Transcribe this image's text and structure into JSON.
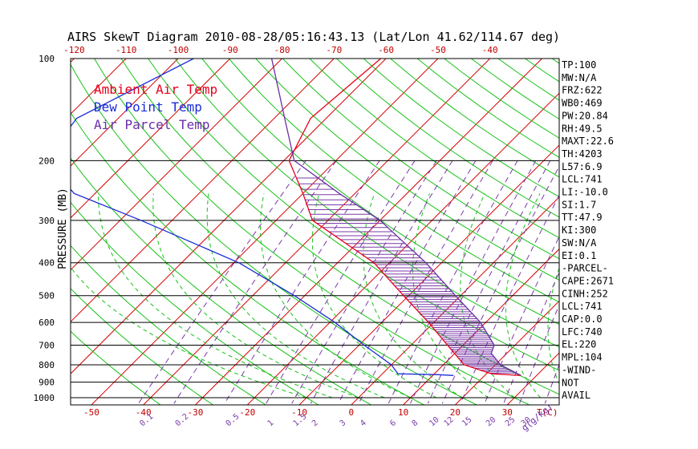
{
  "chart_data": {
    "type": "line",
    "title": "AIRS SkewT Diagram 2010-08-28/05:16:43.13 (Lat/Lon 41.62/114.67 deg)",
    "ylabel": "PRESSURE (MB)",
    "xlabel_bottom": "T(C)",
    "xlabel_mixing": "g(g/kg)",
    "pressure_ticks": [
      100,
      200,
      300,
      400,
      500,
      600,
      700,
      800,
      900,
      1000
    ],
    "pressure_ticks_text": [
      "100",
      "200",
      "300",
      "400",
      "500",
      "600",
      "700",
      "800",
      "900",
      "1000"
    ],
    "pressure_range": [
      100,
      1050
    ],
    "temp_range_at_bottom": [
      -54,
      40
    ],
    "top_temp_ticks": [
      -120,
      -110,
      -100,
      -90,
      -80,
      -70,
      -60,
      -50,
      -40
    ],
    "top_temp_ticks_text": [
      "-120",
      "-110",
      "-100",
      "-90",
      "-80",
      "-70",
      "-60",
      "-50",
      "-40"
    ],
    "bottom_temp_ticks": [
      -50,
      -40,
      -30,
      -20,
      -10,
      0,
      10,
      20,
      30
    ],
    "bottom_temp_ticks_text": [
      "-50",
      "-40",
      "-30",
      "-20",
      "-10",
      "0",
      "10",
      "20",
      "30"
    ],
    "mixing_ratio_labels": [
      "0.1",
      "0.2",
      "0.5",
      "1",
      "1.5",
      "2",
      "3",
      "4",
      "6",
      "8",
      "10",
      "12",
      "15",
      "20",
      "25",
      "30",
      "40"
    ],
    "legend": [
      {
        "name": "Ambient Air Temp",
        "color": "#e8001c"
      },
      {
        "name": "Dew Point Temp",
        "color": "#1b2cd8"
      },
      {
        "name": "Air Parcel Temp",
        "color": "#6b2fa8"
      }
    ],
    "series": [
      {
        "name": "Ambient Air Temp",
        "color": "#e8001c",
        "points": [
          [
            100,
            -61
          ],
          [
            150,
            -63
          ],
          [
            200,
            -59
          ],
          [
            250,
            -50
          ],
          [
            300,
            -43
          ],
          [
            400,
            -23
          ],
          [
            500,
            -11
          ],
          [
            600,
            -1
          ],
          [
            700,
            7
          ],
          [
            800,
            14
          ],
          [
            850,
            21
          ],
          [
            860,
            27
          ]
        ]
      },
      {
        "name": "Dew Point Temp",
        "color": "#1b2cd8",
        "points": [
          [
            100,
            -97
          ],
          [
            150,
            -108
          ],
          [
            200,
            -106
          ],
          [
            250,
            -94
          ],
          [
            300,
            -76
          ],
          [
            400,
            -49
          ],
          [
            500,
            -32
          ],
          [
            600,
            -19
          ],
          [
            700,
            -9
          ],
          [
            800,
            0
          ],
          [
            850,
            3
          ],
          [
            855,
            11
          ],
          [
            860,
            14
          ]
        ]
      },
      {
        "name": "Air Parcel Temp",
        "color": "#6b2fa8",
        "points": [
          [
            100,
            -82
          ],
          [
            150,
            -68
          ],
          [
            200,
            -58
          ],
          [
            250,
            -43
          ],
          [
            300,
            -30
          ],
          [
            400,
            -13
          ],
          [
            500,
            -1
          ],
          [
            600,
            9
          ],
          [
            700,
            16
          ],
          [
            740,
            17
          ],
          [
            800,
            21
          ],
          [
            860,
            27
          ]
        ]
      }
    ],
    "stats": [
      "TP:100",
      "MW:N/A",
      "FRZ:622",
      "WB0:469",
      "PW:20.84",
      "RH:49.5",
      "MAXT:22.6",
      "TH:4203",
      "L57:6.9",
      "LCL:741",
      "LI:-10.0",
      "SI:1.7",
      "TT:47.9",
      "KI:300",
      "SW:N/A",
      "EI:0.1",
      "-PARCEL-",
      "CAPE:2671",
      "CINH:252",
      "LCL:741",
      "CAP:0.0",
      "LFC:740",
      "EL:220",
      "MPL:104",
      "-WIND-",
      "NOT",
      "AVAIL"
    ]
  },
  "colors": {
    "isotherm": "#d80000",
    "dry_adiabat": "#16c216",
    "mixing_ratio": "#7b3aa8",
    "frame": "#000000"
  }
}
